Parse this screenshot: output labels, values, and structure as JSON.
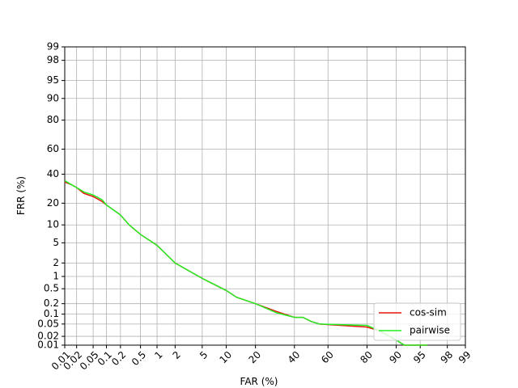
{
  "chart_data": {
    "type": "line",
    "scale": "probit",
    "grid": true,
    "legend": "lower right",
    "xlabel": "FAR (%)",
    "ylabel": "FRR (%)",
    "xlim": [
      0.01,
      99
    ],
    "ylim": [
      0.01,
      99
    ],
    "xticks": [
      0.01,
      0.02,
      0.05,
      0.1,
      0.2,
      0.5,
      1,
      2,
      5,
      10,
      20,
      40,
      60,
      80,
      90,
      95,
      98,
      99
    ],
    "yticks": [
      0.01,
      0.02,
      0.05,
      0.1,
      0.2,
      0.5,
      1,
      2,
      5,
      10,
      20,
      40,
      60,
      80,
      90,
      95,
      98,
      99
    ],
    "x": [
      0.01,
      0.015,
      0.02,
      0.03,
      0.05,
      0.08,
      0.1,
      0.2,
      0.3,
      0.5,
      1,
      2,
      5,
      10,
      13,
      20,
      30,
      40,
      45,
      50,
      55,
      80,
      85,
      90,
      92,
      96
    ],
    "series": [
      {
        "name": "cos-sim",
        "color": "#e8150c",
        "values": [
          34,
          32,
          30,
          26,
          24,
          21,
          19,
          14,
          10,
          7,
          4.5,
          2,
          0.9,
          0.45,
          0.3,
          0.2,
          0.12,
          0.08,
          0.08,
          0.06,
          0.05,
          0.04,
          0.03,
          0.015,
          0.01,
          0.01
        ]
      },
      {
        "name": "pairwise",
        "color": "#22ee22",
        "values": [
          35,
          32,
          30,
          27,
          25,
          22,
          19,
          14,
          10,
          7,
          4.5,
          2,
          0.9,
          0.45,
          0.3,
          0.2,
          0.11,
          0.08,
          0.08,
          0.06,
          0.05,
          0.045,
          0.03,
          0.015,
          0.01,
          0.01
        ]
      }
    ]
  }
}
